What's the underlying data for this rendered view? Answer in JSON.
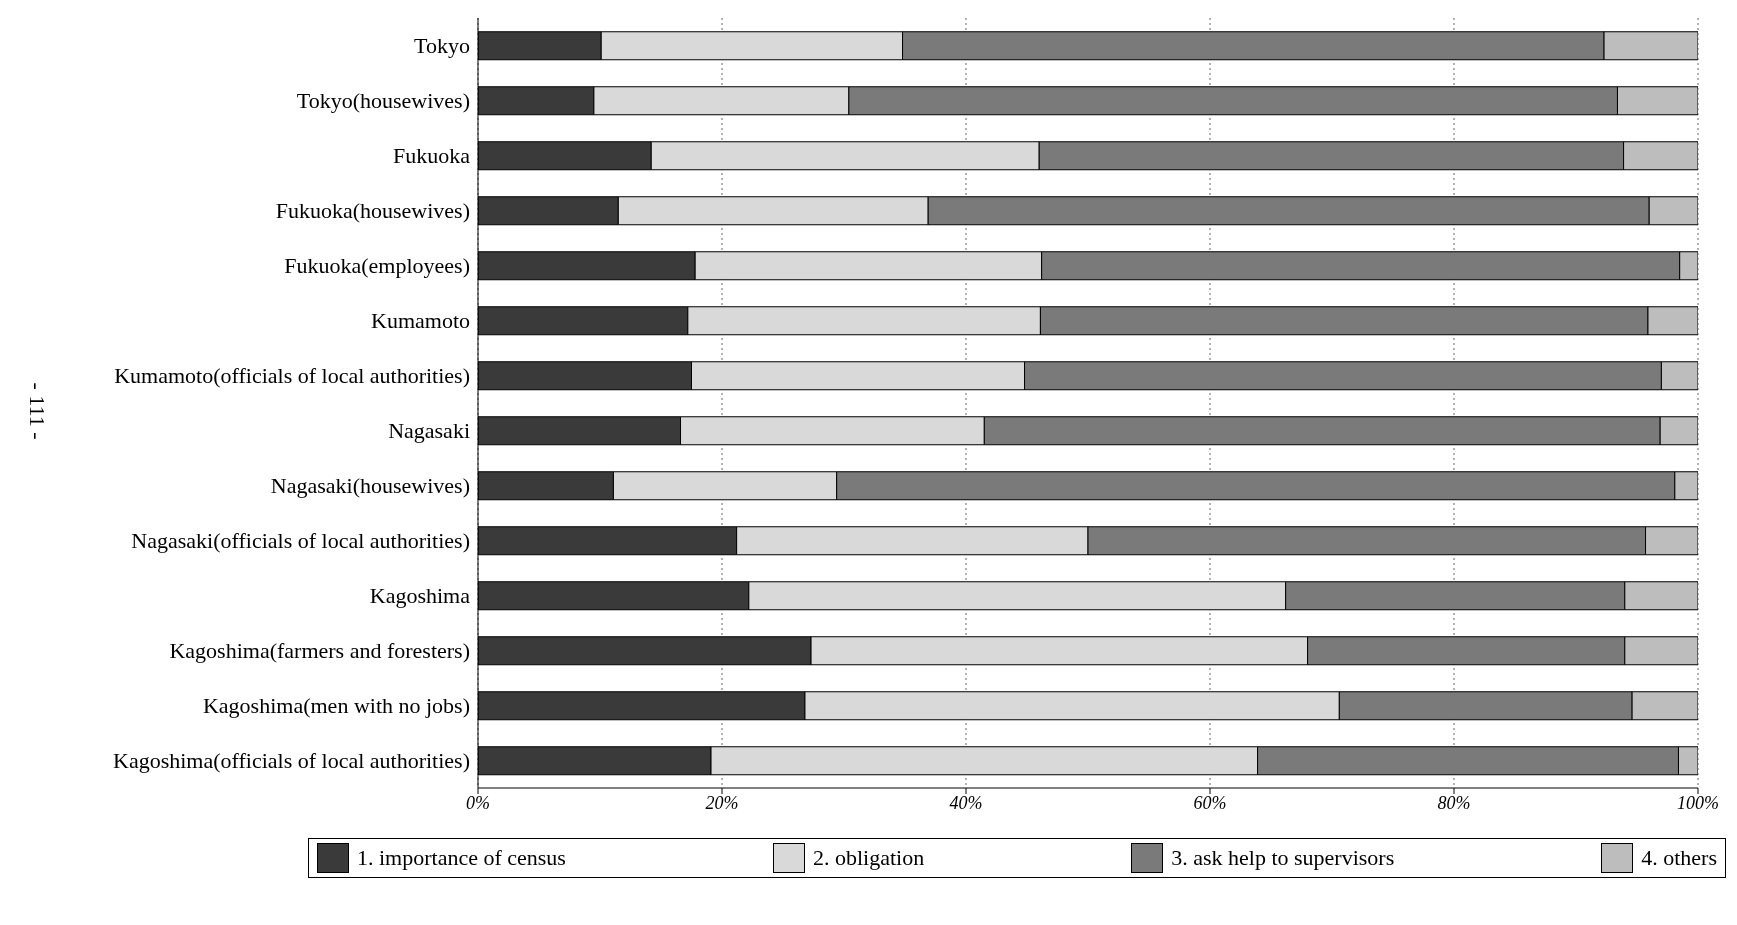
{
  "chart_data": {
    "type": "bar",
    "orientation": "horizontal",
    "stacked": true,
    "categories": [
      "Tokyo",
      "Tokyo(housewives)",
      "Fukuoka",
      "Fukuoka(housewives)",
      "Fukuoka(employees)",
      "Kumamoto",
      "Kumamoto(officials of local authorities)",
      "Nagasaki",
      "Nagasaki(housewives)",
      "Nagasaki(officials of local authorities)",
      "Kagoshima",
      "Kagoshima(farmers and foresters)",
      "Kagoshima(men with no jobs)",
      "Kagoshima(officials of local authorities)"
    ],
    "series": [
      {
        "name": "1. importance of census",
        "color": "#3a3a3a",
        "values": [
          10.1,
          9.5,
          14.2,
          11.5,
          17.8,
          17.2,
          17.5,
          16.6,
          11.1,
          21.2,
          22.2,
          27.3,
          26.8,
          19.1
        ]
      },
      {
        "name": "2. obligation",
        "color": "#d9d9d9",
        "values": [
          24.7,
          20.9,
          31.8,
          25.4,
          28.4,
          28.9,
          27.3,
          24.9,
          18.3,
          28.8,
          44.0,
          40.7,
          43.8,
          44.8
        ]
      },
      {
        "name": "3. ask help to supervisors",
        "color": "#7a7a7a",
        "values": [
          57.5,
          63.0,
          47.9,
          59.1,
          52.3,
          49.8,
          52.2,
          55.4,
          68.7,
          45.7,
          27.8,
          26.0,
          24.0,
          34.5
        ]
      },
      {
        "name": "4. others",
        "color": "#bdbdbd",
        "values": [
          7.7,
          6.6,
          6.1,
          4.0,
          1.5,
          4.1,
          3.0,
          3.1,
          1.9,
          4.3,
          6.0,
          6.0,
          5.4,
          1.6
        ]
      }
    ],
    "xlim": [
      0,
      100
    ],
    "xticks": [
      {
        "value": 0,
        "label": "0%"
      },
      {
        "value": 20,
        "label": "20%"
      },
      {
        "value": 40,
        "label": "40%"
      },
      {
        "value": 60,
        "label": "60%"
      },
      {
        "value": 80,
        "label": "80%"
      },
      {
        "value": 100,
        "label": "100%"
      }
    ],
    "grid": "x",
    "legend": "bottom",
    "annotations": [
      "- 111 -"
    ]
  }
}
